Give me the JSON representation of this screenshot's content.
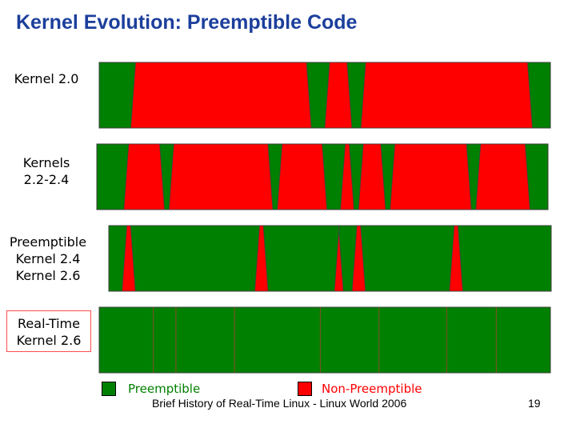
{
  "title": "Kernel Evolution: Preemptible Code",
  "colors": {
    "preemptible": "#008000",
    "non_preemptible": "#ff0000",
    "outline": "#404040"
  },
  "rows": [
    {
      "id": "kernel-2-0",
      "label_lines": [
        "Kernel 2.0"
      ],
      "non_preemptible_regions": [
        [
          0.07,
          0.47
        ],
        [
          0.5,
          0.56
        ],
        [
          0.58,
          0.96
        ]
      ]
    },
    {
      "id": "kernels-2-2-2-4",
      "label_lines": [
        "Kernels",
        "2.2-2.4"
      ],
      "non_preemptible_regions": [
        [
          0.06,
          0.15
        ],
        [
          0.16,
          0.39
        ],
        [
          0.4,
          0.51
        ],
        [
          0.54,
          0.57
        ],
        [
          0.58,
          0.64
        ],
        [
          0.65,
          0.83
        ],
        [
          0.84,
          0.96
        ]
      ]
    },
    {
      "id": "preemptible-kernel-2-4",
      "label_lines": [
        "Preemptible",
        "Kernel 2.4",
        "Kernel 2.6"
      ],
      "non_preemptible_regions": [
        [
          0.03,
          0.06
        ],
        [
          0.33,
          0.36
        ],
        [
          0.51,
          0.53
        ],
        [
          0.55,
          0.58
        ],
        [
          0.77,
          0.8
        ]
      ]
    },
    {
      "id": "real-time-kernel-2-6",
      "label_lines": [
        "Real-Time",
        "Kernel 2.6"
      ],
      "non_preemptible_regions": [],
      "dividers": [
        0.12,
        0.17,
        0.3,
        0.49,
        0.62,
        0.77,
        0.88
      ]
    }
  ],
  "legend": {
    "preemptible_label": "Preemptible",
    "non_preemptible_label": "Non-Preemptible"
  },
  "footer": {
    "source": "Brief History of Real-Time Linux - Linux World 2006",
    "page_number": "19"
  }
}
